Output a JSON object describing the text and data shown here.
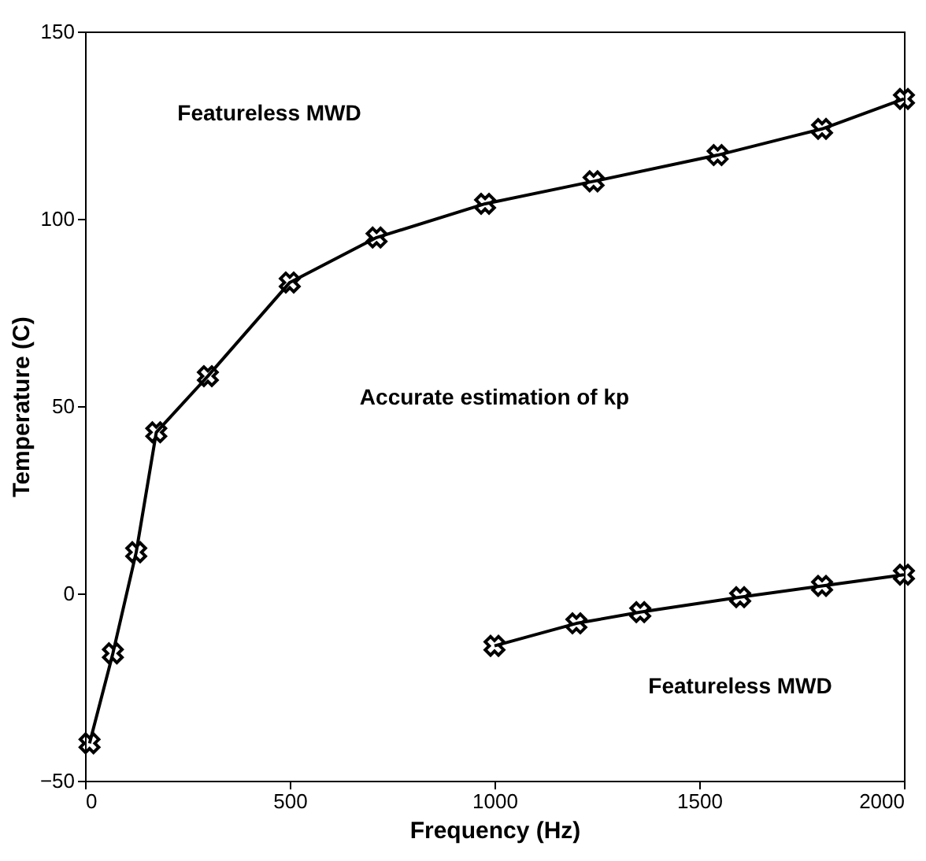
{
  "chart_data": {
    "type": "line",
    "xlabel": "Frequency (Hz)",
    "ylabel": "Temperature (C)",
    "xlim": [
      0,
      2000
    ],
    "ylim": [
      -50,
      150
    ],
    "xticks": [
      0,
      500,
      1000,
      1500,
      2000
    ],
    "yticks": [
      -50,
      0,
      50,
      100,
      150
    ],
    "marker": "cross",
    "line_style": "solid",
    "annotations": [
      "Featureless MWD",
      "Accurate estimation of kp",
      "Featureless MWD"
    ],
    "series": [
      {
        "color": "#000000",
        "x": [
          11,
          68,
          125,
          174,
          300,
          500,
          712,
          977,
          1242,
          1545,
          1800,
          2000
        ],
        "values": [
          -40,
          -16,
          11,
          43,
          58,
          83,
          95,
          104,
          110,
          117,
          124,
          132
        ]
      },
      {
        "color": "#000000",
        "x": [
          1000,
          1200,
          1356,
          1600,
          1800,
          2000
        ],
        "values": [
          -14,
          -8,
          -5,
          -1,
          2,
          5
        ]
      }
    ]
  }
}
